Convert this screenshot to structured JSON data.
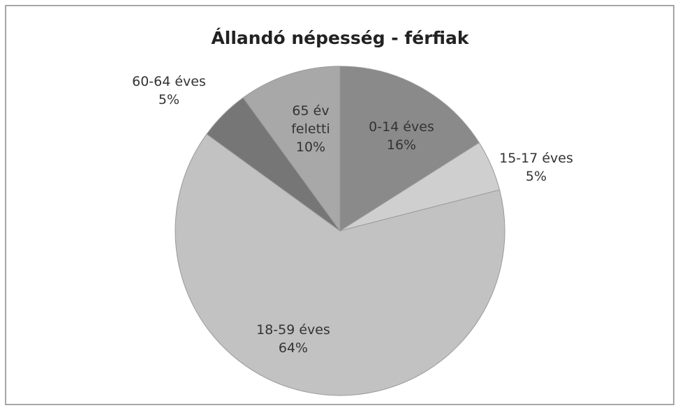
{
  "chart_data": {
    "type": "pie",
    "title": "Állandó népesség - férfiak",
    "categories": [
      "0-14 éves",
      "15-17 éves",
      "18-59 éves",
      "60-64 éves",
      "65 év feletti"
    ],
    "values": [
      16,
      5,
      64,
      5,
      10
    ],
    "value_labels": [
      "16%",
      "5%",
      "64%",
      "5%",
      "10%"
    ],
    "colors": [
      "#8a8a8a",
      "#cfcfcf",
      "#c2c2c2",
      "#767676",
      "#a8a8a8"
    ]
  }
}
